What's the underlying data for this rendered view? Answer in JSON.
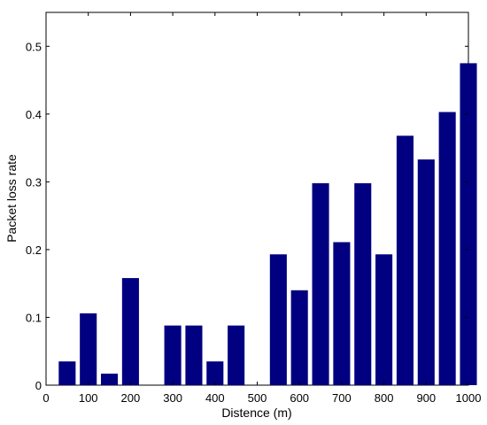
{
  "chart_data": {
    "type": "bar",
    "title": "",
    "xlabel": "Distence (m)",
    "ylabel": "Packet loss rate",
    "xlim": [
      0,
      1000
    ],
    "ylim": [
      0,
      0.55
    ],
    "x_ticks": [
      0,
      100,
      200,
      300,
      400,
      500,
      600,
      700,
      800,
      900,
      1000
    ],
    "y_ticks": [
      0,
      0.1,
      0.2,
      0.3,
      0.4,
      0.5
    ],
    "y_tick_labels": [
      "0",
      "0.1",
      "0.2",
      "0.3",
      "0.4",
      "0.5"
    ],
    "grid": false,
    "bar_color": "#000080",
    "bar_width": 40,
    "x": [
      50,
      100,
      150,
      200,
      250,
      300,
      350,
      400,
      450,
      500,
      550,
      600,
      650,
      700,
      750,
      800,
      850,
      900,
      950,
      1000
    ],
    "values": [
      0.035,
      0.106,
      0.017,
      0.158,
      0,
      0.088,
      0.088,
      0.035,
      0.088,
      0,
      0.193,
      0.14,
      0.298,
      0.211,
      0.298,
      0.193,
      0.368,
      0.333,
      0.403,
      0.475
    ]
  }
}
